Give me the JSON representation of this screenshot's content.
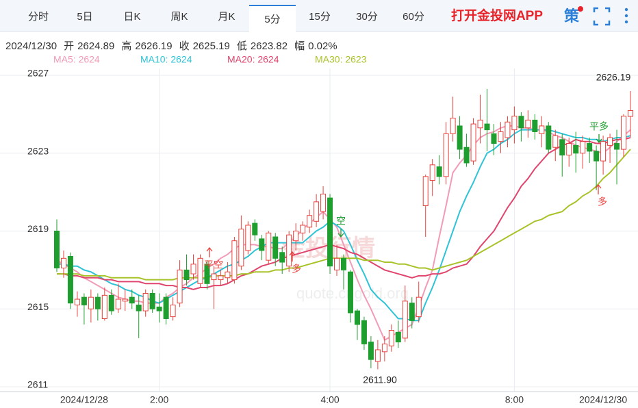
{
  "tabs": [
    "分时",
    "5日",
    "日K",
    "周K",
    "月K",
    "5分",
    "15分",
    "30分",
    "60分"
  ],
  "active_tab": 5,
  "app_link": "打开金投网APP",
  "strategy": "策",
  "header": {
    "date": "2024/12/30",
    "items": [
      {
        "label": "开",
        "value": "2624.89"
      },
      {
        "label": "高",
        "value": "2626.19"
      },
      {
        "label": "收",
        "value": "2625.19"
      },
      {
        "label": "低",
        "value": "2623.82"
      },
      {
        "label": "幅",
        "value": "0.02%"
      }
    ]
  },
  "chart_data": {
    "type": "candlestick",
    "watermark": [
      "金投行情",
      "quote.cngold.org"
    ],
    "categories": [
      null,
      null,
      null,
      null,
      "2024/12/28",
      null,
      null,
      null,
      null,
      null,
      null,
      null,
      null,
      null,
      null,
      "2:00",
      null,
      null,
      null,
      null,
      null,
      null,
      null,
      null,
      null,
      null,
      null,
      null,
      null,
      null,
      null,
      null,
      null,
      null,
      null,
      null,
      null,
      null,
      null,
      null,
      "4:00",
      null,
      null,
      null,
      null,
      null,
      null,
      null,
      null,
      null,
      null,
      null,
      null,
      null,
      null,
      null,
      null,
      null,
      null,
      null,
      null,
      null,
      null,
      null,
      null,
      null,
      null,
      "8:00",
      null,
      null,
      null,
      null,
      null,
      null,
      null,
      null,
      null,
      null,
      null,
      null,
      "2024/12/30",
      null,
      null,
      null,
      null
    ],
    "open": [
      2619.0,
      2617.1,
      2617.7,
      2615.2,
      2615.6,
      2615.0,
      2615.6,
      2614.5,
      2615.7,
      2615.0,
      2615.4,
      2615.6,
      2615.2,
      2614.9,
      2615.8,
      2615.1,
      2615.6,
      2614.6,
      2615.3,
      2617.0,
      2616.8,
      2616.3,
      2617.3,
      2616.5,
      2616.5,
      2616.6,
      2616.5,
      2617.2,
      2618.0,
      2619.4,
      2618.6,
      2617.5,
      2618.7,
      2617.9,
      2617.2,
      2618.5,
      2618.9,
      2619.2,
      2619.5,
      2620.0,
      2620.7,
      2617.0,
      2617.6,
      2616.9,
      2614.9,
      2614.4,
      2613.3,
      2612.3,
      2612.8,
      2613.1,
      2613.8,
      2613.5,
      2615.3,
      2614.6,
      2620.3,
      2621.6,
      2622.3,
      2621.8,
      2624.0,
      2624.4,
      2623.3,
      2622.6,
      2624.3,
      2624.5,
      2624.0,
      2623.6,
      2623.8,
      2624.2,
      2624.9,
      2624.3,
      2624.7,
      2624.0,
      2624.4,
      2623.3,
      2623.7,
      2622.9,
      2623.4,
      2623.0,
      2623.5,
      2623.1,
      2622.6,
      2623.4,
      2623.5,
      2623.2,
      2624.89
    ],
    "high": [
      2619.6,
      2618.0,
      2617.9,
      2615.9,
      2615.8,
      2616.0,
      2615.8,
      2616.1,
      2616.0,
      2616.3,
      2616.0,
      2616.0,
      2615.7,
      2616.0,
      2616.0,
      2615.8,
      2615.8,
      2615.6,
      2617.5,
      2617.8,
      2617.8,
      2617.8,
      2617.5,
      2617.2,
      2617.0,
      2617.4,
      2618.7,
      2619.8,
      2619.5,
      2619.6,
      2618.8,
      2619.0,
      2618.9,
      2618.2,
      2619.0,
      2619.4,
      2619.5,
      2620.1,
      2620.9,
      2621.3,
      2620.9,
      2618.3,
      2617.8,
      2617.0,
      2615.0,
      2614.6,
      2613.6,
      2613.4,
      2613.6,
      2614.2,
      2614.4,
      2616.2,
      2615.6,
      2616.4,
      2621.9,
      2622.7,
      2622.9,
      2624.6,
      2625.9,
      2624.9,
      2624.0,
      2624.8,
      2626.0,
      2626.3,
      2624.5,
      2624.6,
      2624.9,
      2625.4,
      2625.1,
      2625.2,
      2625.0,
      2624.9,
      2624.6,
      2624.2,
      2624.0,
      2623.8,
      2624.1,
      2623.9,
      2623.8,
      2623.4,
      2623.9,
      2624.0,
      2624.2,
      2625.0,
      2626.19
    ],
    "low": [
      2616.9,
      2616.6,
      2615.0,
      2614.6,
      2614.2,
      2614.3,
      2614.4,
      2614.4,
      2614.7,
      2614.8,
      2614.9,
      2615.0,
      2613.5,
      2614.6,
      2614.8,
      2614.3,
      2614.2,
      2614.4,
      2615.1,
      2616.2,
      2616.5,
      2616.1,
      2616.0,
      2615.0,
      2616.2,
      2616.3,
      2616.3,
      2617.0,
      2617.8,
      2618.5,
      2617.5,
      2617.3,
      2617.2,
      2616.8,
      2616.9,
      2618.0,
      2618.5,
      2618.9,
      2619.2,
      2619.6,
      2616.8,
      2616.7,
      2616.0,
      2614.3,
      2613.4,
      2612.9,
      2611.95,
      2611.9,
      2612.3,
      2612.8,
      2613.0,
      2613.3,
      2614.0,
      2614.3,
      2618.7,
      2620.8,
      2621.4,
      2621.4,
      2623.6,
      2622.7,
      2622.3,
      2622.4,
      2623.5,
      2623.1,
      2622.9,
      2623.0,
      2623.3,
      2623.5,
      2623.6,
      2623.8,
      2623.7,
      2623.3,
      2623.0,
      2622.6,
      2621.8,
      2622.3,
      2622.0,
      2622.2,
      2622.5,
      2621.1,
      2621.9,
      2622.5,
      2621.4,
      2622.8,
      2623.82
    ],
    "close": [
      2617.1,
      2617.6,
      2615.3,
      2615.5,
      2615.2,
      2615.6,
      2615.0,
      2615.7,
      2614.9,
      2615.5,
      2615.5,
      2615.3,
      2614.9,
      2615.8,
      2615.0,
      2614.9,
      2614.5,
      2615.2,
      2617.0,
      2616.5,
      2617.3,
      2617.6,
      2616.3,
      2616.8,
      2616.7,
      2616.9,
      2618.5,
      2619.1,
      2619.3,
      2618.8,
      2618.0,
      2618.9,
      2617.6,
      2617.4,
      2618.8,
      2619.0,
      2619.3,
      2619.8,
      2620.5,
      2620.9,
      2617.2,
      2617.6,
      2617.0,
      2614.8,
      2614.2,
      2613.2,
      2612.4,
      2612.9,
      2613.2,
      2613.9,
      2613.3,
      2615.4,
      2614.4,
      2615.6,
      2621.8,
      2622.4,
      2621.8,
      2624.0,
      2624.8,
      2623.2,
      2622.5,
      2624.5,
      2624.7,
      2624.2,
      2623.5,
      2624.1,
      2624.6,
      2624.9,
      2624.3,
      2624.7,
      2624.1,
      2624.4,
      2623.2,
      2623.9,
      2622.9,
      2623.5,
      2623.0,
      2623.6,
      2623.1,
      2622.6,
      2623.6,
      2623.8,
      2623.2,
      2624.9,
      2625.19
    ],
    "up_color": "#e8413c",
    "down_color": "#1e9e2e",
    "series": [
      {
        "name": "MA5: 2624",
        "color": "#f29bb6",
        "values": [
          2617.5,
          2617.3,
          2617.1,
          2616.9,
          2616.6,
          2616.4,
          2616.2,
          2616.0,
          2615.8,
          2615.6,
          2615.5,
          2615.4,
          2615.4,
          2615.3,
          2615.3,
          2615.3,
          2615.6,
          2615.8,
          2616.1,
          2616.3,
          2616.6,
          2616.8,
          2617.1,
          2617.3,
          2617.6,
          2617.8,
          2618.1,
          2618.3,
          2618.3,
          2618.3,
          2618.2,
          2618.2,
          2618.1,
          2618.1,
          2618.4,
          2618.7,
          2619.1,
          2619.4,
          2619.7,
          2620.0,
          2619.6,
          2619.2,
          2618.3,
          2617.4,
          2616.5,
          2615.7,
          2615.0,
          2614.2,
          2613.4,
          2613.6,
          2613.8,
          2614.0,
          2614.2,
          2615.1,
          2616.1,
          2617.0,
          2618.7,
          2620.3,
          2622.0,
          2622.5,
          2622.9,
          2623.4,
          2623.8,
          2624.0,
          2624.1,
          2624.3,
          2624.4,
          2624.4,
          2624.3,
          2624.3,
          2624.2,
          2624.2,
          2624.1,
          2623.9,
          2623.8,
          2623.6,
          2623.4,
          2623.3,
          2623.2,
          2623.1,
          2623.0,
          2623.3,
          2623.6,
          2623.9,
          2624.2
        ]
      },
      {
        "name": "MA10: 2624",
        "color": "#2ec3d6",
        "values": [
          2617.3,
          2617.3,
          2617.2,
          2617.2,
          2617.0,
          2616.9,
          2616.7,
          2616.5,
          2616.3,
          2616.2,
          2616.0,
          2615.9,
          2615.7,
          2615.6,
          2615.4,
          2615.3,
          2615.5,
          2615.7,
          2615.9,
          2616.1,
          2616.3,
          2616.5,
          2616.6,
          2616.8,
          2617.0,
          2617.2,
          2617.3,
          2617.5,
          2617.7,
          2618.0,
          2618.2,
          2618.4,
          2618.4,
          2618.4,
          2618.4,
          2618.4,
          2618.4,
          2618.7,
          2619.0,
          2619.2,
          2619.5,
          2619.3,
          2619.0,
          2618.3,
          2617.5,
          2616.8,
          2616.0,
          2615.6,
          2615.3,
          2614.9,
          2614.5,
          2614.5,
          2614.4,
          2614.4,
          2615.3,
          2616.1,
          2617.0,
          2618.0,
          2619.0,
          2620.0,
          2620.8,
          2621.5,
          2622.3,
          2623.0,
          2623.2,
          2623.5,
          2623.7,
          2624.0,
          2624.2,
          2624.2,
          2624.2,
          2624.2,
          2624.2,
          2624.1,
          2624.0,
          2623.9,
          2623.8,
          2623.8,
          2623.7,
          2623.7,
          2623.6,
          2623.7,
          2623.8,
          2623.8,
          2623.9
        ]
      },
      {
        "name": "MA20: 2624",
        "color": "#e0456e",
        "values": [
          2616.8,
          2616.8,
          2616.7,
          2616.7,
          2616.6,
          2616.6,
          2616.6,
          2616.5,
          2616.5,
          2616.4,
          2616.4,
          2616.4,
          2616.4,
          2616.3,
          2616.3,
          2616.3,
          2616.2,
          2616.2,
          2616.1,
          2616.1,
          2616.0,
          2616.1,
          2616.1,
          2616.2,
          2616.2,
          2616.3,
          2616.5,
          2616.7,
          2616.8,
          2617.0,
          2617.2,
          2617.3,
          2617.4,
          2617.6,
          2617.7,
          2617.8,
          2617.9,
          2618.0,
          2618.1,
          2618.2,
          2618.3,
          2618.2,
          2618.1,
          2617.9,
          2617.8,
          2617.6,
          2617.4,
          2617.2,
          2617.0,
          2616.9,
          2616.8,
          2616.7,
          2616.6,
          2616.7,
          2616.7,
          2616.8,
          2616.8,
          2616.9,
          2617.1,
          2617.2,
          2617.3,
          2617.7,
          2618.2,
          2618.6,
          2619.0,
          2619.6,
          2620.2,
          2620.7,
          2621.3,
          2621.7,
          2622.2,
          2622.6,
          2623.0,
          2623.2,
          2623.4,
          2623.5,
          2623.7,
          2623.6,
          2623.6,
          2623.5,
          2623.5,
          2623.6,
          2623.7,
          2623.7,
          2623.8
        ]
      },
      {
        "name": "MA30: 2623",
        "color": "#a8c32a",
        "values": [
          2616.8,
          2616.8,
          2616.8,
          2616.8,
          2616.7,
          2616.7,
          2616.7,
          2616.7,
          2616.6,
          2616.6,
          2616.6,
          2616.6,
          2616.6,
          2616.5,
          2616.5,
          2616.5,
          2616.5,
          2616.5,
          2616.6,
          2616.6,
          2616.6,
          2616.6,
          2616.6,
          2616.7,
          2616.7,
          2616.7,
          2616.7,
          2616.8,
          2616.8,
          2616.9,
          2616.9,
          2616.9,
          2617.0,
          2617.0,
          2617.1,
          2617.1,
          2617.2,
          2617.3,
          2617.4,
          2617.5,
          2617.6,
          2617.6,
          2617.6,
          2617.6,
          2617.6,
          2617.5,
          2617.5,
          2617.5,
          2617.4,
          2617.4,
          2617.3,
          2617.3,
          2617.2,
          2617.1,
          2617.1,
          2617.0,
          2617.1,
          2617.2,
          2617.3,
          2617.4,
          2617.5,
          2617.7,
          2617.9,
          2618.1,
          2618.3,
          2618.5,
          2618.7,
          2618.9,
          2619.1,
          2619.3,
          2619.5,
          2619.6,
          2619.8,
          2619.9,
          2620.0,
          2620.3,
          2620.5,
          2620.8,
          2621.0,
          2621.3,
          2621.7,
          2622.0,
          2622.4,
          2622.8,
          2623.2
        ]
      }
    ],
    "ylim": [
      2611,
      2627
    ],
    "yticks": [
      2611,
      2615,
      2619,
      2623,
      2627
    ],
    "grid": true,
    "annotations": [
      {
        "text": "2626.19"
      },
      {
        "text": "2611.90"
      },
      {
        "text": "平空"
      },
      {
        "text": "多"
      },
      {
        "text": "空"
      },
      {
        "text": "平多"
      },
      {
        "text": "多"
      }
    ]
  }
}
